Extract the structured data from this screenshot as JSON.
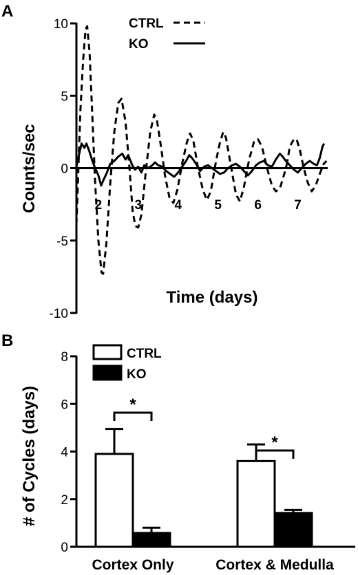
{
  "chart_data": [
    {
      "panel": "A",
      "type": "line",
      "ylabel": "Counts/sec",
      "xlabel": "Time (days)",
      "ylim": [
        -10,
        10
      ],
      "yticks": [
        -10,
        -5,
        0,
        5,
        10
      ],
      "xlim": [
        1.45,
        7.75
      ],
      "day_labels": [
        "2",
        "3",
        "4",
        "5",
        "6",
        "7"
      ],
      "legend_placement": "top-center",
      "series": [
        {
          "name": "CTRL",
          "style": "dashed",
          "points": [
            [
              1.45,
              -3.9
            ],
            [
              1.5,
              0
            ],
            [
              1.55,
              4
            ],
            [
              1.62,
              7.5
            ],
            [
              1.68,
              9.6
            ],
            [
              1.72,
              9.8
            ],
            [
              1.78,
              8
            ],
            [
              1.85,
              3.5
            ],
            [
              1.92,
              -1
            ],
            [
              2.0,
              -5
            ],
            [
              2.08,
              -7.2
            ],
            [
              2.12,
              -7.3
            ],
            [
              2.2,
              -5.2
            ],
            [
              2.3,
              -1
            ],
            [
              2.4,
              2.5
            ],
            [
              2.5,
              4.5
            ],
            [
              2.58,
              4.8
            ],
            [
              2.68,
              3.2
            ],
            [
              2.78,
              0
            ],
            [
              2.86,
              -3
            ],
            [
              2.93,
              -4
            ],
            [
              3.0,
              -4.1
            ],
            [
              3.08,
              -3.2
            ],
            [
              3.18,
              -0.5
            ],
            [
              3.3,
              2.5
            ],
            [
              3.4,
              3.7
            ],
            [
              3.47,
              3.3
            ],
            [
              3.57,
              1.5
            ],
            [
              3.67,
              -0.5
            ],
            [
              3.78,
              -2
            ],
            [
              3.88,
              -2.4
            ],
            [
              3.98,
              -1.5
            ],
            [
              4.1,
              0.3
            ],
            [
              4.22,
              1.8
            ],
            [
              4.3,
              2.4
            ],
            [
              4.38,
              1.9
            ],
            [
              4.5,
              0
            ],
            [
              4.62,
              -1.5
            ],
            [
              4.72,
              -2.2
            ],
            [
              4.82,
              -1.6
            ],
            [
              4.95,
              0.5
            ],
            [
              5.05,
              1.8
            ],
            [
              5.13,
              2.5
            ],
            [
              5.2,
              2.1
            ],
            [
              5.32,
              0.2
            ],
            [
              5.45,
              -1.8
            ],
            [
              5.55,
              -2.3
            ],
            [
              5.65,
              -1.3
            ],
            [
              5.78,
              0.6
            ],
            [
              5.9,
              1.8
            ],
            [
              6.0,
              2.0
            ],
            [
              6.1,
              1.5
            ],
            [
              6.22,
              0.1
            ],
            [
              6.35,
              -1.2
            ],
            [
              6.45,
              -1.6
            ],
            [
              6.55,
              -1.4
            ],
            [
              6.65,
              -0.5
            ],
            [
              6.72,
              0.2
            ]
          ]
        },
        {
          "name": "KO",
          "style": "solid",
          "points": [
            [
              1.45,
              0.1
            ],
            [
              1.52,
              1.0
            ],
            [
              1.58,
              1.7
            ],
            [
              1.65,
              1.4
            ],
            [
              1.7,
              1.7
            ],
            [
              1.77,
              1.2
            ],
            [
              1.85,
              0.5
            ],
            [
              1.92,
              0
            ],
            [
              2.0,
              -0.5
            ],
            [
              2.07,
              -1.2
            ],
            [
              2.13,
              -0.8
            ],
            [
              2.2,
              -0.4
            ],
            [
              2.3,
              0.3
            ],
            [
              2.4,
              0.5
            ],
            [
              2.5,
              0.8
            ],
            [
              2.6,
              1.0
            ],
            [
              2.68,
              0.6
            ],
            [
              2.75,
              0.9
            ],
            [
              2.85,
              0.2
            ],
            [
              2.92,
              -0.1
            ],
            [
              3.0,
              0.1
            ],
            [
              3.08,
              -0.3
            ],
            [
              3.15,
              0.2
            ],
            [
              3.25,
              0.0
            ],
            [
              3.35,
              0.2
            ],
            [
              3.42,
              0.4
            ],
            [
              3.5,
              0.2
            ],
            [
              3.6,
              0.1
            ],
            [
              3.7,
              -0.2
            ],
            [
              3.8,
              -0.4
            ],
            [
              3.9,
              -0.6
            ],
            [
              4.0,
              -0.3
            ],
            [
              4.1,
              0.1
            ],
            [
              4.2,
              0.5
            ],
            [
              4.28,
              0.9
            ],
            [
              4.35,
              0.7
            ],
            [
              4.45,
              0.3
            ],
            [
              4.55,
              -0.2
            ],
            [
              4.65,
              0.1
            ],
            [
              4.75,
              0.2
            ],
            [
              4.85,
              0.0
            ],
            [
              4.95,
              -0.2
            ],
            [
              5.05,
              -0.4
            ],
            [
              5.15,
              -0.3
            ],
            [
              5.25,
              0.0
            ],
            [
              5.35,
              0.2
            ],
            [
              5.45,
              0.3
            ],
            [
              5.55,
              0.1
            ],
            [
              5.65,
              -0.2
            ],
            [
              5.75,
              -0.5
            ],
            [
              5.85,
              -0.2
            ],
            [
              5.95,
              0.2
            ],
            [
              6.05,
              0.4
            ],
            [
              6.15,
              0.5
            ],
            [
              6.25,
              0.2
            ],
            [
              6.35,
              0.1
            ],
            [
              6.45,
              0.6
            ],
            [
              6.55,
              1.0
            ],
            [
              6.62,
              0.8
            ],
            [
              6.7,
              0.5
            ],
            [
              6.8,
              0.2
            ],
            [
              6.9,
              -0.1
            ],
            [
              7.0,
              -0.3
            ],
            [
              7.1,
              0.0
            ],
            [
              7.2,
              0.3
            ],
            [
              7.3,
              0.5
            ],
            [
              7.4,
              0.3
            ],
            [
              7.48,
              0.2
            ],
            [
              7.55,
              0.7
            ],
            [
              7.62,
              1.5
            ],
            [
              7.66,
              1.7
            ]
          ]
        },
        {
          "name": "CTRL",
          "style": "dashed",
          "points": [
            [
              6.72,
              0.2
            ],
            [
              6.8,
              1.5
            ],
            [
              6.9,
              2.0
            ],
            [
              6.97,
              2.0
            ],
            [
              7.05,
              1.3
            ],
            [
              7.15,
              0.0
            ],
            [
              7.25,
              -1.0
            ],
            [
              7.35,
              -1.6
            ],
            [
              7.45,
              -1.2
            ],
            [
              7.55,
              -0.4
            ],
            [
              7.65,
              0.3
            ],
            [
              7.72,
              0.5
            ]
          ]
        }
      ]
    },
    {
      "panel": "B",
      "type": "bar",
      "ylabel": "# of Cycles (days)",
      "ylim": [
        0,
        8
      ],
      "yticks": [
        0,
        2,
        4,
        6,
        8
      ],
      "categories": [
        "Cortex Only",
        "Cortex & Medulla"
      ],
      "legend_placement": "top-left",
      "series": [
        {
          "name": "CTRL",
          "fill": "white",
          "values": [
            3.9,
            3.6
          ],
          "errors": [
            1.05,
            0.7
          ]
        },
        {
          "name": "KO",
          "fill": "black",
          "values": [
            0.58,
            1.42
          ],
          "errors": [
            0.22,
            0.13
          ]
        }
      ],
      "annotations": [
        "*",
        "*"
      ]
    }
  ],
  "panel_letters": [
    "A",
    "B"
  ]
}
